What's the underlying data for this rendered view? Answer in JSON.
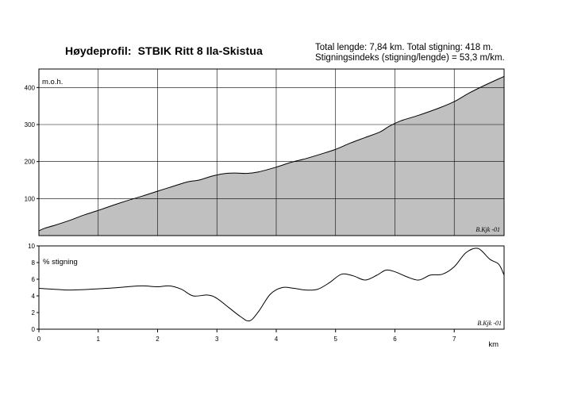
{
  "title": "Høydeprofil:  STBIK Ritt 8 Ila-Skistua",
  "stats": {
    "line1": "Total lengde: 7,84 km. Total stigning: 418 m.",
    "line2": "Stigningsindeks (stigning/lengde) = 53,3 m/km."
  },
  "signature": "B.Kjk -01",
  "chart_data": [
    {
      "type": "area",
      "ylabel": "m.o.h.",
      "xlim": [
        0,
        7.84
      ],
      "ylim": [
        0,
        450
      ],
      "yticks": [
        100,
        200,
        300,
        400
      ],
      "xgrid": [
        1,
        2,
        3,
        4,
        5,
        6,
        7
      ],
      "grid": true,
      "x": [
        0,
        0.1,
        0.25,
        0.5,
        0.75,
        1.0,
        1.25,
        1.5,
        1.75,
        2.0,
        2.2,
        2.5,
        2.7,
        2.9,
        3.1,
        3.3,
        3.5,
        3.7,
        4.0,
        4.25,
        4.5,
        4.75,
        5.0,
        5.25,
        5.5,
        5.75,
        5.9,
        6.1,
        6.4,
        6.75,
        7.0,
        7.25,
        7.5,
        7.84
      ],
      "y": [
        13,
        20,
        27,
        40,
        55,
        68,
        82,
        95,
        107,
        120,
        130,
        145,
        150,
        160,
        167,
        169,
        168,
        172,
        185,
        198,
        208,
        220,
        233,
        250,
        265,
        280,
        295,
        310,
        325,
        345,
        362,
        385,
        405,
        430
      ]
    },
    {
      "type": "line",
      "ylabel": "% stigning",
      "xlabel": "km",
      "xlim": [
        0,
        7.84
      ],
      "ylim": [
        0,
        10
      ],
      "yticks": [
        0,
        2,
        4,
        6,
        8,
        10
      ],
      "xticks": [
        0,
        1,
        2,
        3,
        4,
        5,
        6,
        7
      ],
      "grid": false,
      "x": [
        0,
        0.25,
        0.5,
        0.75,
        1.0,
        1.25,
        1.5,
        1.75,
        2.0,
        2.2,
        2.4,
        2.6,
        2.85,
        3.0,
        3.2,
        3.4,
        3.55,
        3.7,
        3.9,
        4.1,
        4.3,
        4.5,
        4.7,
        4.9,
        5.1,
        5.3,
        5.5,
        5.7,
        5.85,
        6.0,
        6.2,
        6.4,
        6.6,
        6.8,
        7.0,
        7.2,
        7.4,
        7.6,
        7.75,
        7.84
      ],
      "y": [
        4.9,
        4.8,
        4.7,
        4.75,
        4.85,
        4.95,
        5.1,
        5.2,
        5.1,
        5.2,
        4.8,
        4.0,
        4.1,
        3.7,
        2.6,
        1.5,
        1.0,
        2.1,
        4.2,
        5.0,
        4.9,
        4.7,
        4.8,
        5.6,
        6.6,
        6.4,
        5.9,
        6.5,
        7.1,
        6.9,
        6.3,
        5.9,
        6.5,
        6.6,
        7.5,
        9.2,
        9.7,
        8.4,
        7.8,
        6.5
      ]
    }
  ]
}
